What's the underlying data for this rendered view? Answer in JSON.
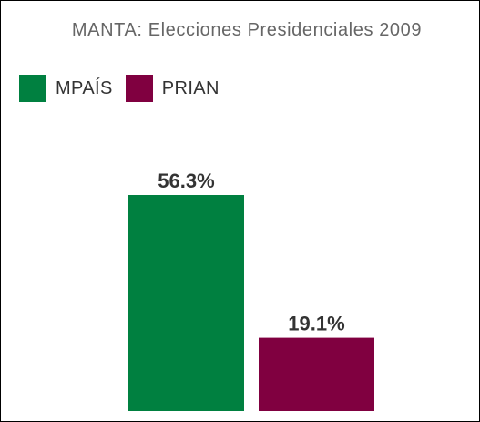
{
  "chart_data": {
    "type": "bar",
    "title": "MANTA: Elecciones Presidenciales 2009",
    "categories": [
      "MPAÍS",
      "PRIAN"
    ],
    "values": [
      56.3,
      19.1
    ],
    "value_labels": [
      "56.3%",
      "19.1%"
    ],
    "colors": [
      "#008040",
      "#800040"
    ],
    "legend": {
      "position": "top-left",
      "entries": [
        "MPAÍS",
        "PRIAN"
      ]
    },
    "ylim": [
      0,
      60
    ],
    "grid": false,
    "xlabel": "",
    "ylabel": ""
  }
}
